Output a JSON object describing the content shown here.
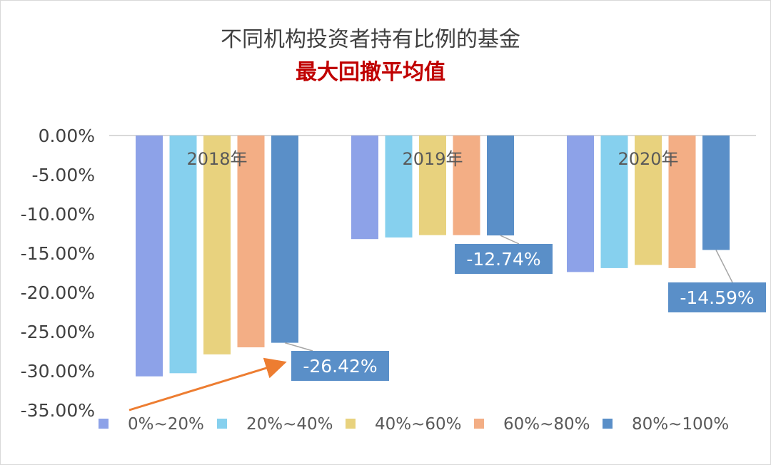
{
  "chart_data": {
    "type": "bar",
    "title": "不同机构投资者持有比例的基金",
    "subtitle": "最大回撤平均值",
    "categories": [
      "2018年",
      "2019年",
      "2020年"
    ],
    "series": [
      {
        "name": "0%~20%",
        "values": [
          -30.7,
          -13.2,
          -17.4
        ]
      },
      {
        "name": "20%~40%",
        "values": [
          -30.3,
          -13.0,
          -16.9
        ]
      },
      {
        "name": "40%~60%",
        "values": [
          -27.9,
          -12.7,
          -16.5
        ]
      },
      {
        "name": "60%~80%",
        "values": [
          -27.0,
          -12.7,
          -16.9
        ]
      },
      {
        "name": "80%~100%",
        "values": [
          -26.42,
          -12.74,
          -14.59
        ]
      }
    ],
    "ylim": [
      -35,
      0
    ],
    "yticks": [
      0,
      -5,
      -10,
      -15,
      -20,
      -25,
      -30,
      -35
    ],
    "ytick_labels": [
      "0.00%",
      "-5.00%",
      "-10.00%",
      "-15.00%",
      "-20.00%",
      "-25.00%",
      "-30.00%",
      "-35.00%"
    ],
    "data_labels": [
      "-26.42%",
      "-12.74%",
      "-14.59%"
    ],
    "legend_position": "bottom",
    "grid": false,
    "annotation": "arrow pointing to the 2018 80%~100% data label",
    "colors": {
      "series": [
        "#8da2e8",
        "#86d0ee",
        "#e8d27e",
        "#f3ae85",
        "#5a8fc8"
      ],
      "title": "#404040",
      "subtitle": "#c00000",
      "arrow": "#ed7d31",
      "label_box": "#5a8fc8",
      "axis": "#d9d9d9"
    }
  }
}
